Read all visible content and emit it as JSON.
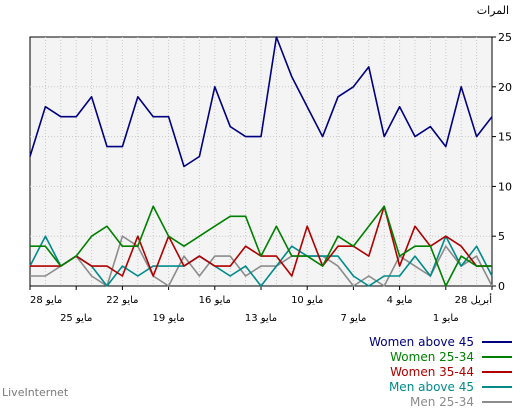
{
  "chart_data": {
    "type": "line",
    "ylabel": "المرات",
    "ylim": [
      0,
      25
    ],
    "yticks": [
      "0",
      "5",
      "10",
      "15",
      "20",
      "25"
    ],
    "grid": true,
    "x_tick_labels_top": [
      "28 مايو",
      "22 مايو",
      "16 مايو",
      "10 مايو",
      "4 مايو",
      "28 أبريل"
    ],
    "x_tick_labels_bottom": [
      "25 مايو",
      "19 مايو",
      "13 مايو",
      "7 مايو",
      "1 مايو"
    ],
    "legend_position": "bottom-right",
    "series": [
      {
        "name": "Women above 45",
        "color": "#000080",
        "values": [
          13,
          18,
          17,
          17,
          19,
          14,
          14,
          19,
          17,
          17,
          12,
          13,
          20,
          16,
          15,
          15,
          25,
          21,
          18,
          15,
          19,
          20,
          22,
          15,
          18,
          15,
          16,
          14,
          20,
          15,
          17
        ]
      },
      {
        "name": "Women 25-34",
        "color": "#008000",
        "values": [
          4,
          4,
          2,
          3,
          5,
          6,
          4,
          4,
          8,
          5,
          4,
          5,
          6,
          7,
          7,
          3,
          6,
          3,
          3,
          2,
          5,
          4,
          6,
          8,
          3,
          4,
          4,
          0,
          3,
          2,
          2
        ]
      },
      {
        "name": "Women 35-44",
        "color": "#b00000",
        "values": [
          2,
          2,
          2,
          3,
          2,
          2,
          1,
          5,
          1,
          5,
          2,
          3,
          2,
          2,
          4,
          3,
          3,
          1,
          6,
          2,
          4,
          4,
          3,
          8,
          2,
          6,
          4,
          5,
          4,
          2,
          2
        ]
      },
      {
        "name": "Men above 45",
        "color": "#008b8b",
        "values": [
          2,
          5,
          2,
          3,
          2,
          0,
          2,
          1,
          2,
          2,
          2,
          3,
          2,
          1,
          2,
          0,
          2,
          4,
          3,
          3,
          3,
          1,
          0,
          1,
          1,
          3,
          1,
          5,
          2,
          4,
          1
        ]
      },
      {
        "name": "Men 25-34",
        "color": "#8c8c8c",
        "values": [
          1,
          1,
          2,
          3,
          1,
          0,
          5,
          4,
          1,
          0,
          3,
          1,
          3,
          3,
          1,
          2,
          2,
          3,
          3,
          3,
          2,
          0,
          1,
          0,
          3,
          2,
          1,
          4,
          2,
          3,
          0
        ]
      }
    ]
  },
  "footer": {
    "credit": "LiveInternet"
  }
}
